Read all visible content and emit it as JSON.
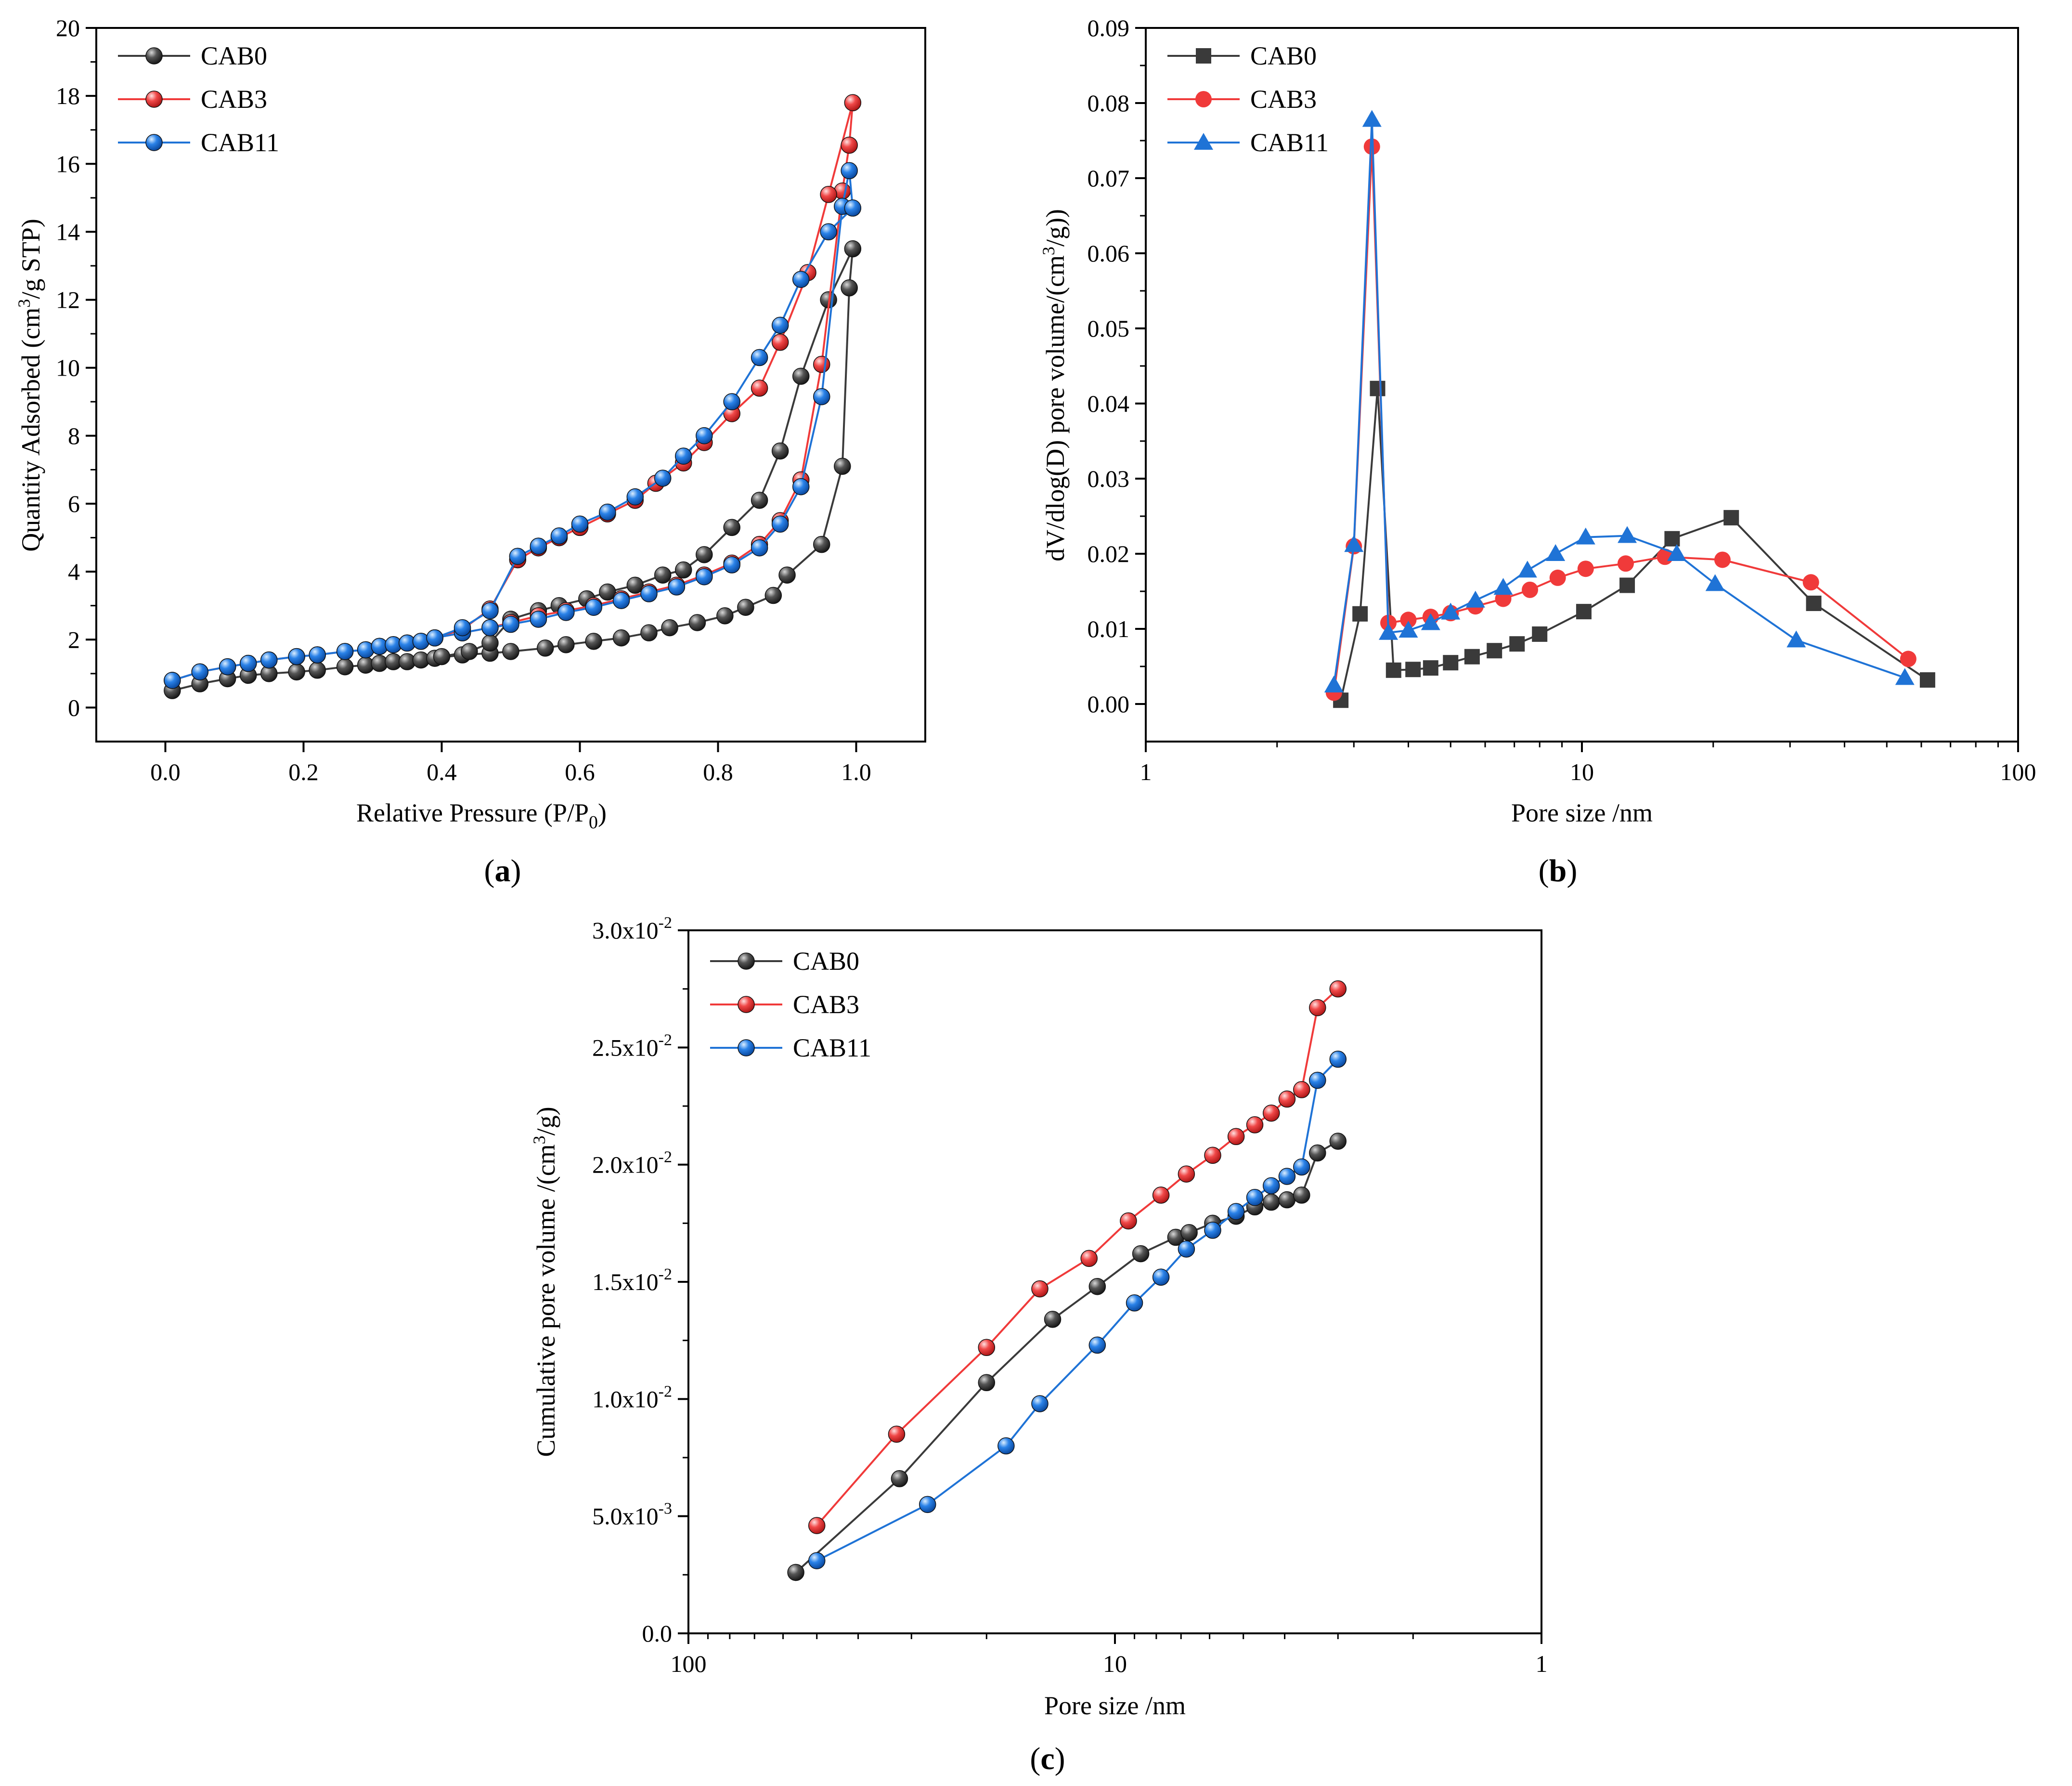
{
  "chart_data": [
    {
      "id": "a",
      "type": "scatter",
      "caption": "(a)",
      "xlabel": "Relative Pressure (P/P0)",
      "ylabel": "Quantity Adsorbed (cm3/g STP)",
      "xscale": "linear",
      "xlim": [
        -0.1,
        1.1
      ],
      "ylim": [
        -1,
        20
      ],
      "xticks": [
        0,
        0.2,
        0.4,
        0.6,
        0.8,
        1.0
      ],
      "xtick_labels": [
        "0.0",
        "0.2",
        "0.4",
        "0.6",
        "0.8",
        "1.0"
      ],
      "yticks": [
        0,
        2,
        4,
        6,
        8,
        10,
        12,
        14,
        16,
        18,
        20
      ],
      "ytick_labels": [
        "0",
        "2",
        "4",
        "6",
        "8",
        "10",
        "12",
        "14",
        "16",
        "18",
        "20"
      ],
      "legend_position": "top-left",
      "series": [
        {
          "name": "CAB0",
          "color": "#3a3a3a",
          "marker": "sphere",
          "x": [
            0.01,
            0.05,
            0.09,
            0.12,
            0.15,
            0.19,
            0.22,
            0.26,
            0.29,
            0.31,
            0.33,
            0.35,
            0.37,
            0.39,
            0.43,
            0.47,
            0.5,
            0.55,
            0.58,
            0.62,
            0.66,
            0.7,
            0.73,
            0.77,
            0.81,
            0.84,
            0.88,
            0.9,
            0.95,
            0.98,
            0.99,
            0.995,
            0.96,
            0.92,
            0.89,
            0.86,
            0.82,
            0.78,
            0.75,
            0.72,
            0.68,
            0.64,
            0.61,
            0.57,
            0.54,
            0.5,
            0.47,
            0.44,
            0.4
          ],
          "y": [
            0.5,
            0.7,
            0.85,
            0.95,
            1.0,
            1.05,
            1.1,
            1.2,
            1.25,
            1.3,
            1.35,
            1.35,
            1.4,
            1.45,
            1.55,
            1.6,
            1.65,
            1.75,
            1.85,
            1.95,
            2.05,
            2.2,
            2.35,
            2.5,
            2.7,
            2.95,
            3.3,
            3.9,
            4.8,
            7.1,
            12.35,
            13.5,
            12.0,
            9.75,
            7.55,
            6.1,
            5.3,
            4.5,
            4.05,
            3.9,
            3.6,
            3.4,
            3.2,
            3.0,
            2.85,
            2.6,
            1.9,
            1.65,
            1.5
          ]
        },
        {
          "name": "CAB3",
          "color": "#f03a3a",
          "marker": "sphere",
          "x": [
            0.01,
            0.05,
            0.09,
            0.12,
            0.15,
            0.19,
            0.22,
            0.26,
            0.29,
            0.31,
            0.33,
            0.35,
            0.37,
            0.39,
            0.43,
            0.47,
            0.5,
            0.54,
            0.58,
            0.62,
            0.66,
            0.7,
            0.74,
            0.78,
            0.82,
            0.86,
            0.89,
            0.92,
            0.95,
            0.98,
            0.99,
            0.995,
            0.96,
            0.93,
            0.89,
            0.86,
            0.82,
            0.78,
            0.75,
            0.71,
            0.68,
            0.64,
            0.6,
            0.57,
            0.54,
            0.51,
            0.47,
            0.43,
            0.39
          ],
          "y": [
            0.8,
            1.05,
            1.2,
            1.3,
            1.4,
            1.5,
            1.55,
            1.65,
            1.7,
            1.8,
            1.85,
            1.9,
            1.95,
            2.05,
            2.2,
            2.35,
            2.5,
            2.7,
            2.85,
            3.0,
            3.2,
            3.4,
            3.6,
            3.9,
            4.25,
            4.8,
            5.5,
            6.7,
            10.1,
            15.2,
            16.55,
            17.8,
            15.1,
            12.8,
            10.75,
            9.4,
            8.65,
            7.8,
            7.2,
            6.6,
            6.1,
            5.7,
            5.3,
            5.0,
            4.7,
            4.35,
            2.9,
            2.3,
            2.05
          ]
        },
        {
          "name": "CAB11",
          "color": "#1f73d6",
          "marker": "sphere",
          "x": [
            0.01,
            0.05,
            0.09,
            0.12,
            0.15,
            0.19,
            0.22,
            0.26,
            0.29,
            0.31,
            0.33,
            0.35,
            0.37,
            0.39,
            0.43,
            0.47,
            0.5,
            0.54,
            0.58,
            0.62,
            0.66,
            0.7,
            0.74,
            0.78,
            0.82,
            0.86,
            0.89,
            0.92,
            0.95,
            0.98,
            0.99,
            0.995,
            0.96,
            0.92,
            0.89,
            0.86,
            0.82,
            0.78,
            0.75,
            0.72,
            0.68,
            0.64,
            0.6,
            0.57,
            0.54,
            0.51,
            0.47,
            0.43,
            0.39
          ],
          "y": [
            0.8,
            1.05,
            1.2,
            1.3,
            1.4,
            1.5,
            1.55,
            1.65,
            1.7,
            1.8,
            1.85,
            1.9,
            1.95,
            2.05,
            2.2,
            2.35,
            2.45,
            2.6,
            2.8,
            2.95,
            3.15,
            3.35,
            3.55,
            3.85,
            4.2,
            4.7,
            5.4,
            6.5,
            9.15,
            14.75,
            15.8,
            14.7,
            14.0,
            12.6,
            11.25,
            10.3,
            9.0,
            8.0,
            7.4,
            6.75,
            6.2,
            5.75,
            5.4,
            5.05,
            4.75,
            4.45,
            2.85,
            2.35,
            2.05
          ]
        }
      ]
    },
    {
      "id": "b",
      "type": "line",
      "caption": "(b)",
      "xlabel": "Pore size /nm",
      "ylabel": "dV/dlog(D) pore volume/(cm3/g)",
      "xscale": "log",
      "xlim": [
        1,
        100
      ],
      "ylim": [
        -0.005,
        0.09
      ],
      "xticks": [
        1,
        10,
        100
      ],
      "xtick_labels": [
        "1",
        "10",
        "100"
      ],
      "yticks": [
        0,
        0.01,
        0.02,
        0.03,
        0.04,
        0.05,
        0.06,
        0.07,
        0.08,
        0.09
      ],
      "ytick_labels": [
        "0.00",
        "0.01",
        "0.02",
        "0.03",
        "0.04",
        "0.05",
        "0.06",
        "0.07",
        "0.08",
        "0.09"
      ],
      "legend_position": "top-left",
      "series": [
        {
          "name": "CAB0",
          "color": "#3a3a3a",
          "marker": "square",
          "x": [
            2.8,
            3.1,
            3.4,
            3.7,
            4.1,
            4.5,
            5.0,
            5.6,
            6.3,
            7.1,
            8.0,
            10.1,
            12.7,
            16.1,
            22.0,
            34.0,
            62.0
          ],
          "y": [
            0.0005,
            0.012,
            0.042,
            0.0045,
            0.0046,
            0.0048,
            0.0055,
            0.0063,
            0.0071,
            0.008,
            0.0093,
            0.0123,
            0.0158,
            0.022,
            0.0248,
            0.0134,
            0.0032
          ]
        },
        {
          "name": "CAB3",
          "color": "#f03a3a",
          "marker": "circle",
          "x": [
            2.7,
            3.0,
            3.3,
            3.6,
            4.0,
            4.5,
            5.0,
            5.7,
            6.6,
            7.6,
            8.8,
            10.2,
            12.6,
            15.5,
            21.0,
            33.5,
            56.0
          ],
          "y": [
            0.0015,
            0.021,
            0.0742,
            0.0108,
            0.0112,
            0.0116,
            0.0121,
            0.013,
            0.014,
            0.0152,
            0.0168,
            0.018,
            0.0187,
            0.0196,
            0.0192,
            0.0162,
            0.006
          ]
        },
        {
          "name": "CAB11",
          "color": "#1f73d6",
          "marker": "triangle",
          "x": [
            2.7,
            3.0,
            3.3,
            3.6,
            4.0,
            4.5,
            5.0,
            5.7,
            6.6,
            7.5,
            8.7,
            10.2,
            12.7,
            16.5,
            20.2,
            31.0,
            55.0
          ],
          "y": [
            0.0025,
            0.0212,
            0.0778,
            0.0095,
            0.0098,
            0.0108,
            0.0122,
            0.0138,
            0.0155,
            0.0178,
            0.02,
            0.0222,
            0.0224,
            0.02,
            0.016,
            0.0085,
            0.0035
          ]
        }
      ]
    },
    {
      "id": "c",
      "type": "line",
      "caption": "(c)",
      "xlabel": "Pore size /nm",
      "ylabel": "Cumulative pore volume /(cm3/g)",
      "xscale": "log",
      "xreversed": true,
      "xlim": [
        100,
        1
      ],
      "ylim": [
        0,
        0.03
      ],
      "xticks": [
        100,
        10,
        1
      ],
      "xtick_labels": [
        "100",
        "10",
        "1"
      ],
      "yticks": [
        0,
        0.005,
        0.01,
        0.015,
        0.02,
        0.025,
        0.03
      ],
      "ytick_labels": [
        {
          "mant": "0.0",
          "exp": ""
        },
        {
          "mant": "5.0x10",
          "exp": "-3"
        },
        {
          "mant": "1.0x10",
          "exp": "-2"
        },
        {
          "mant": "1.5x10",
          "exp": "-2"
        },
        {
          "mant": "2.0x10",
          "exp": "-2"
        },
        {
          "mant": "2.5x10",
          "exp": "-2"
        },
        {
          "mant": "3.0x10",
          "exp": "-2"
        }
      ],
      "legend_position": "top-left",
      "series": [
        {
          "name": "CAB0",
          "color": "#3a3a3a",
          "marker": "sphere",
          "x": [
            56.0,
            32.0,
            20.0,
            14.0,
            11.0,
            8.7,
            7.2,
            6.7,
            5.9,
            5.2,
            4.7,
            4.3,
            3.95,
            3.65,
            3.35,
            3.0
          ],
          "y": [
            0.0026,
            0.0066,
            0.0107,
            0.0134,
            0.0148,
            0.0162,
            0.0169,
            0.0171,
            0.0175,
            0.0178,
            0.0182,
            0.0184,
            0.0185,
            0.0187,
            0.0205,
            0.021
          ]
        },
        {
          "name": "CAB3",
          "color": "#f03a3a",
          "marker": "sphere",
          "x": [
            50.0,
            32.5,
            20.0,
            15.0,
            11.5,
            9.3,
            7.8,
            6.8,
            5.9,
            5.2,
            4.7,
            4.3,
            3.95,
            3.65,
            3.35,
            3.0
          ],
          "y": [
            0.0046,
            0.0085,
            0.0122,
            0.0147,
            0.016,
            0.0176,
            0.0187,
            0.0196,
            0.0204,
            0.0212,
            0.0217,
            0.0222,
            0.0228,
            0.0232,
            0.0267,
            0.0275
          ]
        },
        {
          "name": "CAB11",
          "color": "#1f73d6",
          "marker": "sphere",
          "x": [
            50.0,
            27.5,
            18.0,
            15.0,
            11.0,
            9.0,
            7.8,
            6.8,
            5.9,
            5.2,
            4.7,
            4.3,
            3.95,
            3.65,
            3.35,
            3.0
          ],
          "y": [
            0.0031,
            0.0055,
            0.008,
            0.0098,
            0.0123,
            0.0141,
            0.0152,
            0.0164,
            0.0172,
            0.018,
            0.0186,
            0.0191,
            0.0195,
            0.0199,
            0.0236,
            0.0245
          ]
        }
      ]
    }
  ]
}
